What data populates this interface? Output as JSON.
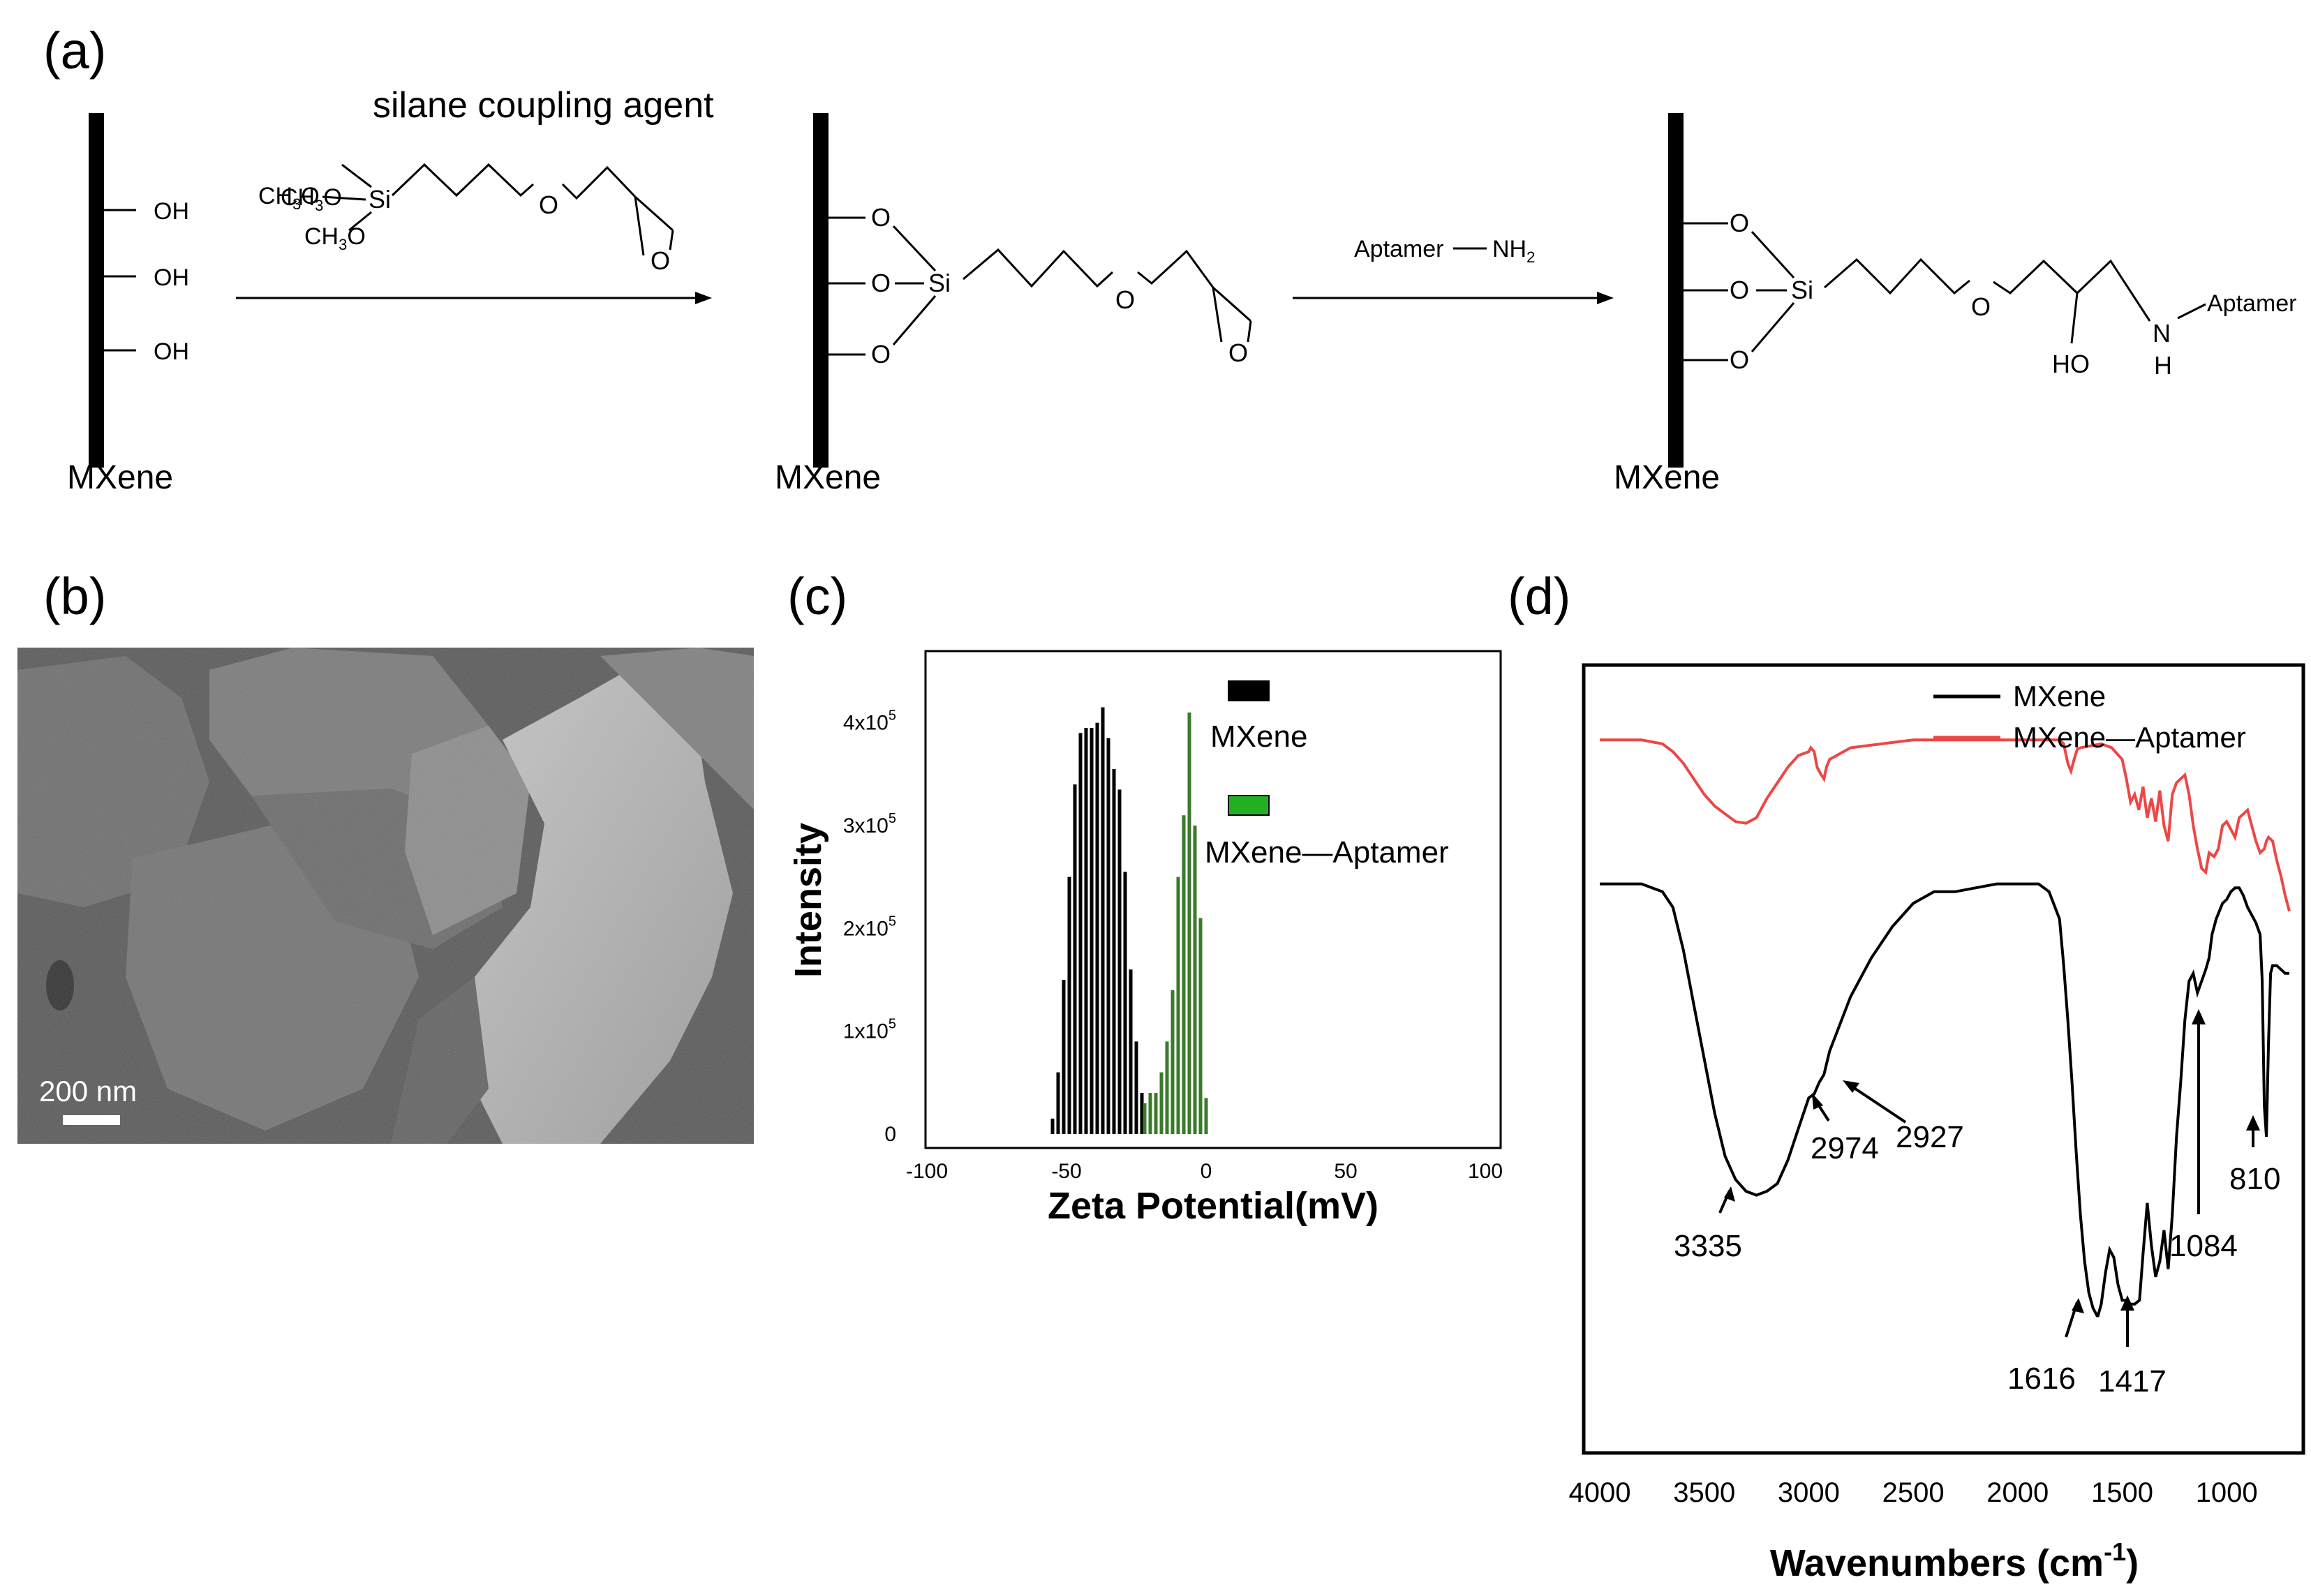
{
  "panels": {
    "a": {
      "label": "(a)"
    },
    "b": {
      "label": "(b)"
    },
    "c": {
      "label": "(c)"
    },
    "d": {
      "label": "(d)"
    }
  },
  "scheme": {
    "reagent_title": "silane coupling agent",
    "reagent_methoxy": [
      "CH3O",
      "CH3O",
      "CH3O"
    ],
    "atoms": {
      "si": "Si",
      "o": "O",
      "oh": "OH",
      "ho": "HO",
      "n": "N",
      "h": "H",
      "h2": "2"
    },
    "oh_groups": [
      "—OH",
      "—OH",
      "—OH"
    ],
    "step2_reagent": "Aptamer",
    "step2_amine": "NH",
    "aptamer_label": "Aptamer",
    "substrate_labels": [
      "MXene",
      "MXene",
      "MXene"
    ]
  },
  "sem": {
    "scale_bar_label": "200 nm",
    "colors": {
      "background": "#5a5a5a",
      "flake_dark": "#6c6c6c",
      "flake_mid": "#888888",
      "flake_light": "#b4b4b4",
      "scale_bar": "#ffffff"
    }
  },
  "chart_data": [
    {
      "type": "bar",
      "panel": "c",
      "title": "",
      "xlabel": "Zeta Potential(mV)",
      "ylabel": "Intensity",
      "xlim": [
        -100,
        100
      ],
      "ylim": [
        0,
        450000
      ],
      "x_ticks": [
        -100,
        -50,
        0,
        50,
        100
      ],
      "y_ticks": [
        {
          "value": 0,
          "base": "0",
          "exp": ""
        },
        {
          "value": 100000,
          "base": "1x10",
          "exp": "5"
        },
        {
          "value": 200000,
          "base": "2x10",
          "exp": "5"
        },
        {
          "value": 300000,
          "base": "3x10",
          "exp": "5"
        },
        {
          "value": 400000,
          "base": "4x10",
          "exp": "5"
        }
      ],
      "legend_placement": "top-center",
      "series": [
        {
          "name": "MXene",
          "color": "#000000",
          "legend_color": "#000000",
          "x": [
            -55,
            -53,
            -51,
            -49,
            -47,
            -45,
            -43,
            -41,
            -39,
            -37,
            -35,
            -33,
            -31,
            -29,
            -27,
            -25,
            -23
          ],
          "values": [
            15000,
            60000,
            150000,
            250000,
            340000,
            390000,
            395000,
            395000,
            400000,
            415000,
            385000,
            355000,
            335000,
            255000,
            160000,
            90000,
            40000
          ]
        },
        {
          "name": "MXene—Aptamer",
          "color": "#3a7a2a",
          "legend_color": "#22b022",
          "x": [
            -22,
            -20,
            -18,
            -16,
            -14,
            -12,
            -10,
            -8,
            -6,
            -4,
            -2,
            0
          ],
          "values": [
            30000,
            40000,
            40000,
            60000,
            90000,
            140000,
            250000,
            310000,
            410000,
            300000,
            210000,
            35000
          ]
        }
      ]
    },
    {
      "type": "line",
      "panel": "d",
      "title": "",
      "xlabel": "Wavenumbers (cm",
      "xlabel_sup": "-1",
      "xlabel_close": ")",
      "ylabel": "",
      "xlim": [
        4000,
        700
      ],
      "ylim": [
        0,
        100
      ],
      "x_ticks": [
        4000,
        3500,
        3000,
        2500,
        2000,
        1500,
        1000
      ],
      "legend_placement": "top-right",
      "series": [
        {
          "name": "MXene",
          "color": "#000000",
          "x": [
            4000,
            3800,
            3700,
            3650,
            3600,
            3550,
            3500,
            3450,
            3400,
            3350,
            3300,
            3250,
            3200,
            3150,
            3100,
            3050,
            3000,
            2974,
            2950,
            2927,
            2900,
            2800,
            2700,
            2600,
            2500,
            2400,
            2300,
            2200,
            2100,
            2000,
            1900,
            1850,
            1800,
            1780,
            1760,
            1740,
            1720,
            1700,
            1680,
            1660,
            1640,
            1620,
            1616,
            1600,
            1580,
            1560,
            1540,
            1520,
            1500,
            1480,
            1460,
            1440,
            1417,
            1400,
            1380,
            1360,
            1340,
            1320,
            1300,
            1280,
            1260,
            1240,
            1220,
            1200,
            1180,
            1160,
            1140,
            1120,
            1100,
            1084,
            1070,
            1050,
            1020,
            1000,
            980,
            960,
            940,
            920,
            900,
            880,
            860,
            840,
            830,
            820,
            810,
            800,
            790,
            780,
            760,
            740,
            720,
            700
          ],
          "values": [
            72.5,
            72.5,
            71.5,
            69.5,
            64.0,
            57.0,
            50.0,
            43.0,
            37.5,
            34.5,
            33.0,
            32.5,
            33.0,
            34.0,
            37.0,
            41.0,
            45.0,
            45.5,
            47.0,
            48.0,
            51.0,
            58.0,
            63.0,
            67.0,
            70.0,
            71.5,
            71.5,
            72.0,
            72.5,
            72.5,
            72.5,
            71.5,
            68.0,
            62.0,
            55.0,
            47.0,
            38.0,
            30.0,
            24.0,
            20.0,
            18.0,
            17.0,
            17.0,
            18.5,
            22.5,
            25.5,
            24.5,
            21.0,
            19.0,
            19.0,
            18.5,
            18.5,
            19.0,
            25.0,
            31.5,
            26.0,
            22.0,
            24.0,
            28.0,
            23.0,
            30.0,
            40.0,
            47.0,
            55.0,
            60.0,
            61.0,
            58.5,
            60.0,
            61.5,
            63.0,
            66.0,
            68.0,
            70.0,
            70.5,
            71.5,
            72.0,
            72.0,
            71.0,
            69.5,
            68.5,
            67.5,
            66.0,
            60.0,
            44.0,
            40.0,
            52.0,
            61.0,
            62.0,
            62.0,
            61.5,
            61.0,
            61.0
          ]
        },
        {
          "name": "MXene—Aptamer",
          "color": "#ec4747",
          "x": [
            4000,
            3800,
            3700,
            3650,
            3600,
            3550,
            3500,
            3450,
            3400,
            3350,
            3300,
            3250,
            3200,
            3150,
            3100,
            3050,
            3000,
            2990,
            2974,
            2960,
            2940,
            2927,
            2915,
            2900,
            2800,
            2500,
            2000,
            1800,
            1780,
            1760,
            1745,
            1730,
            1715,
            1700,
            1600,
            1550,
            1500,
            1480,
            1460,
            1440,
            1420,
            1400,
            1380,
            1360,
            1340,
            1320,
            1300,
            1280,
            1260,
            1240,
            1220,
            1200,
            1180,
            1160,
            1140,
            1120,
            1100,
            1084,
            1060,
            1040,
            1020,
            1000,
            980,
            960,
            940,
            920,
            900,
            880,
            860,
            840,
            820,
            810,
            800,
            780,
            760,
            740,
            720,
            700
          ],
          "values": [
            91.0,
            91.0,
            90.5,
            89.5,
            88.0,
            86.0,
            84.0,
            82.5,
            81.5,
            80.5,
            80.3,
            81.0,
            83.5,
            85.5,
            87.5,
            89.0,
            89.5,
            90.0,
            89.5,
            87.5,
            86.5,
            86.0,
            87.5,
            88.5,
            90.0,
            91.0,
            91.0,
            91.0,
            90.5,
            88.0,
            87.0,
            88.5,
            89.8,
            90.0,
            90.5,
            90.0,
            88.5,
            86.0,
            83.0,
            84.0,
            82.0,
            85.0,
            81.0,
            83.5,
            80.5,
            84.5,
            80.0,
            78.0,
            84.0,
            85.5,
            86.0,
            86.5,
            84.0,
            80.0,
            77.0,
            74.5,
            74.0,
            76.5,
            76.0,
            77.0,
            80.0,
            80.5,
            79.5,
            78.5,
            81.0,
            81.5,
            82.0,
            80.0,
            78.0,
            76.5,
            77.0,
            78.0,
            78.5,
            78.0,
            75.5,
            73.5,
            71.0,
            69.0
          ]
        }
      ],
      "annotations": [
        "3335",
        "2974",
        "2927",
        "1616",
        "1417",
        "1084",
        "810"
      ]
    }
  ]
}
